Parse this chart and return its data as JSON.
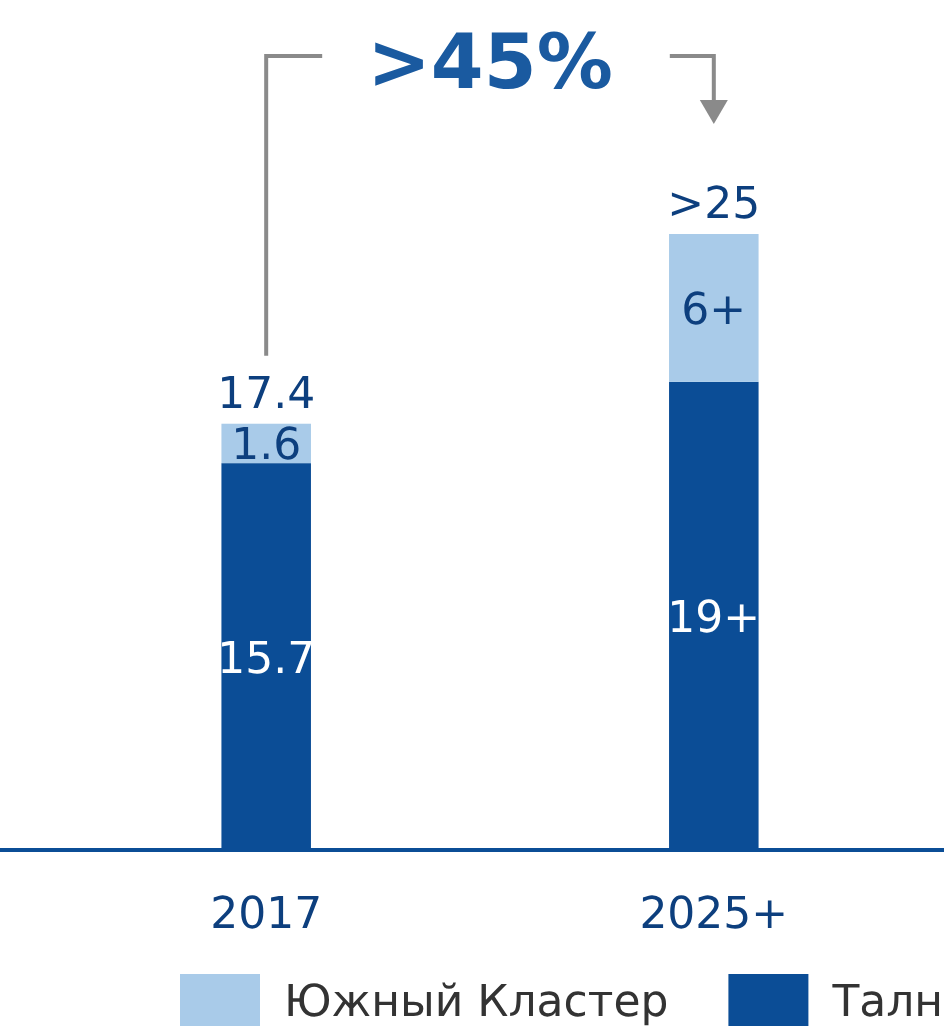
{
  "chart_data": {
    "type": "bar",
    "stacked": true,
    "categories": [
      "2017",
      "2025+"
    ],
    "series": [
      {
        "name": "Талн",
        "color": "#0b4d96",
        "values": [
          15.7,
          19
        ],
        "value_labels": [
          "15.7",
          "19+"
        ]
      },
      {
        "name": "Южный Кластер",
        "color": "#a9cbe9",
        "values": [
          1.6,
          6
        ],
        "value_labels": [
          "1.6",
          "6+"
        ]
      }
    ],
    "totals": [
      "17.4",
      ">25"
    ],
    "annotations": [
      ">45%"
    ],
    "legend": "bottom"
  }
}
